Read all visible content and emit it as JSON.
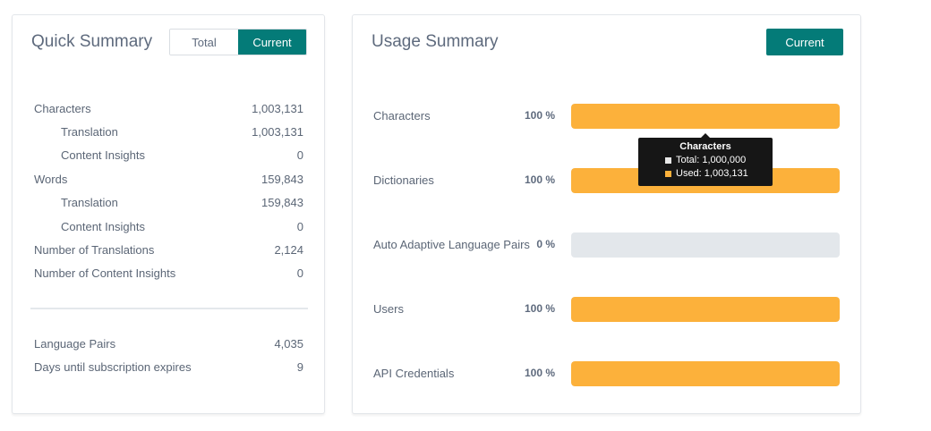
{
  "quick_summary": {
    "title": "Quick Summary",
    "toggle": {
      "total_label": "Total",
      "current_label": "Current",
      "selected": "Current"
    },
    "stats": [
      {
        "label": "Characters",
        "value": "1,003,131"
      },
      {
        "label": "Translation",
        "value": "1,003,131"
      },
      {
        "label": "Content Insights",
        "value": "0"
      },
      {
        "label": "Words",
        "value": "159,843"
      },
      {
        "label": "Translation",
        "value": "159,843"
      },
      {
        "label": "Content Insights",
        "value": "0"
      },
      {
        "label": "Number of Translations",
        "value": "2,124"
      },
      {
        "label": "Number of Content Insights",
        "value": "0"
      }
    ],
    "extra_stats": [
      {
        "label": "Language Pairs",
        "value": "4,035"
      },
      {
        "label": "Days until subscription expires",
        "value": "9"
      }
    ]
  },
  "usage_summary": {
    "title": "Usage Summary",
    "current_button": "Current",
    "rows": [
      {
        "label": "Characters",
        "percent_text": "100 %",
        "fill_fraction": 1.0
      },
      {
        "label": "Dictionaries",
        "percent_text": "100 %",
        "fill_fraction": 1.0
      },
      {
        "label": "Auto Adaptive Language Pairs",
        "percent_text": "0 %",
        "fill_fraction": 0.0
      },
      {
        "label": "Users",
        "percent_text": "100 %",
        "fill_fraction": 1.0
      },
      {
        "label": "API Credentials",
        "percent_text": "100 %",
        "fill_fraction": 1.0
      }
    ],
    "tooltip": {
      "title": "Characters",
      "total_line": "Total: 1,000,000",
      "used_line": "Used: 1,003,131",
      "total_color": "#e8e8e8",
      "used_color": "#fcb13b"
    }
  },
  "colors": {
    "accent": "#047b78",
    "bar_fill": "#fcb13b",
    "bar_track": "#e3e7eb"
  }
}
